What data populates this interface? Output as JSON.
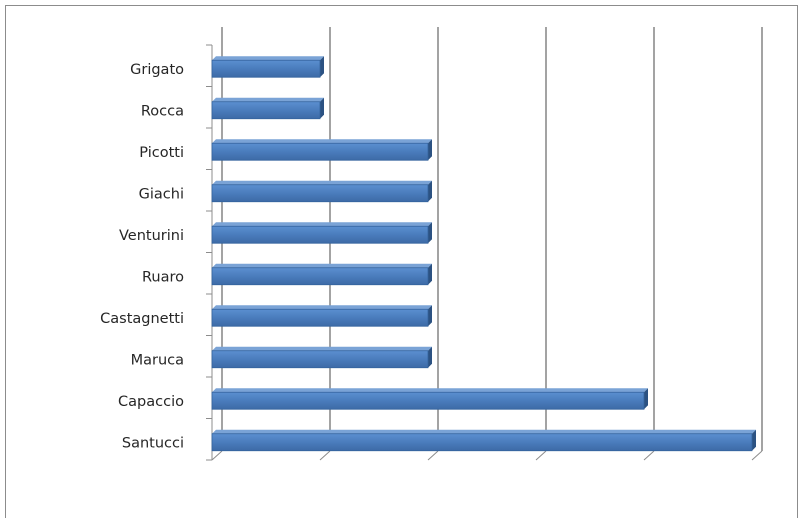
{
  "chart_data": {
    "type": "bar",
    "orientation": "horizontal",
    "style": "3d",
    "categories": [
      "Santucci",
      "Capaccio",
      "Maruca",
      "Castagnetti",
      "Ruaro",
      "Venturini",
      "Giachi",
      "Picotti",
      "Rocca",
      "Grigato"
    ],
    "values": [
      5,
      4,
      2,
      2,
      2,
      2,
      2,
      2,
      1,
      1
    ],
    "xlim": [
      0,
      5
    ],
    "title": "",
    "xlabel": "",
    "ylabel": "",
    "grid": "vertical",
    "legend": "none",
    "bar_color": "#4f81bd"
  }
}
